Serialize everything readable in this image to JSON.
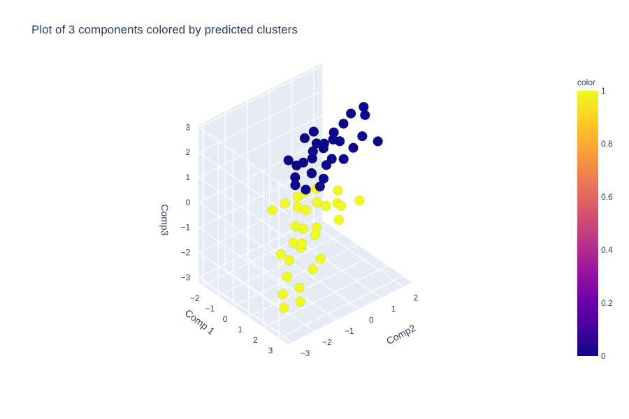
{
  "chart_data": {
    "type": "scatter",
    "subtype": "3d-scatter",
    "title": "Plot of 3 components colored by predicted clusters",
    "axes": {
      "x": {
        "label": "Comp 1",
        "ticks": [
          "−2",
          "−1",
          "0",
          "1",
          "2",
          "3"
        ],
        "range": [
          -2.3,
          3.6
        ]
      },
      "y": {
        "label": "Comp2",
        "ticks": [
          "−3",
          "−2",
          "−1",
          "0",
          "1",
          "2"
        ],
        "range": [
          -3.2,
          2.4
        ]
      },
      "z": {
        "label": "Comp3",
        "ticks": [
          "−3",
          "−2",
          "−1",
          "0",
          "1",
          "2",
          "3"
        ],
        "range": [
          -3.2,
          3.1
        ]
      }
    },
    "colorbar": {
      "title": "color",
      "ticks": [
        "0",
        "0.2",
        "0.4",
        "0.6",
        "0.8",
        "1"
      ],
      "range": [
        0,
        1
      ],
      "colorscale": "plasma"
    },
    "series": [
      {
        "cluster": 0,
        "color": "#0d0887",
        "note_points": [
          [
            -0.5,
            0.3,
            0.8
          ],
          [
            -0.3,
            0.6,
            1.2
          ],
          [
            0,
            0.9,
            1.5
          ],
          [
            0.2,
            1.2,
            1.9
          ],
          [
            0.4,
            1.5,
            2.2
          ],
          [
            -0.8,
            0.2,
            0.6
          ],
          [
            -0.2,
            0.5,
            1.0
          ],
          [
            0.1,
            0.8,
            1.4
          ],
          [
            0.3,
            1.1,
            1.7
          ],
          [
            0.6,
            1.7,
            2.6
          ],
          [
            1.0,
            2.0,
            2.9
          ],
          [
            0.8,
            2.2,
            2.4
          ],
          [
            1.5,
            2.3,
            1.6
          ],
          [
            -0.6,
            0.0,
            0.3
          ],
          [
            -0.1,
            0.4,
            0.5
          ],
          [
            0.2,
            0.2,
            0.7
          ],
          [
            0.5,
            0.9,
            1.1
          ],
          [
            0.7,
            1.3,
            1.0
          ],
          [
            -0.4,
            0.7,
            1.9
          ],
          [
            -0.7,
            0.5,
            1.6
          ],
          [
            -0.9,
            -0.1,
            0.9
          ],
          [
            0.0,
            1.0,
            0.6
          ],
          [
            0.4,
            0.6,
            0.4
          ],
          [
            0.9,
            1.6,
            1.4
          ],
          [
            1.2,
            1.8,
            1.9
          ],
          [
            -0.3,
            -0.2,
            0.2
          ],
          [
            0.1,
            0.0,
            0.1
          ],
          [
            -0.5,
            0.9,
            1.3
          ],
          [
            0.3,
            1.4,
            1.5
          ],
          [
            0.6,
            0.3,
            0.3
          ]
        ]
      },
      {
        "cluster": 1,
        "color": "#f0f921",
        "note_points": [
          [
            0.3,
            -0.5,
            -0.3
          ],
          [
            0.6,
            -0.8,
            -0.8
          ],
          [
            0.9,
            -1.1,
            -1.2
          ],
          [
            1.2,
            -1.5,
            -1.6
          ],
          [
            1.5,
            -1.8,
            -2.0
          ],
          [
            0.0,
            -0.3,
            -0.1
          ],
          [
            0.4,
            -0.2,
            -0.5
          ],
          [
            0.8,
            -0.6,
            -0.9
          ],
          [
            1.1,
            -0.9,
            -1.4
          ],
          [
            1.8,
            -2.2,
            -2.4
          ],
          [
            2.3,
            -2.5,
            -2.6
          ],
          [
            2.6,
            -2.0,
            -1.9
          ],
          [
            3.1,
            -2.3,
            -2.1
          ],
          [
            2.9,
            -1.6,
            -1.2
          ],
          [
            1.6,
            -1.2,
            -0.9
          ],
          [
            1.9,
            -0.8,
            -0.6
          ],
          [
            0.7,
            0.1,
            -0.2
          ],
          [
            0.2,
            0.4,
            0.0
          ],
          [
            1.0,
            0.3,
            -0.3
          ],
          [
            1.4,
            -0.4,
            -0.7
          ],
          [
            -0.4,
            -0.6,
            -0.4
          ],
          [
            -0.8,
            -0.9,
            -0.7
          ],
          [
            0.5,
            -1.4,
            -1.7
          ],
          [
            1.3,
            0.6,
            -0.2
          ],
          [
            2.0,
            0.2,
            -0.4
          ],
          [
            2.4,
            -0.9,
            -1.3
          ],
          [
            -0.2,
            0.2,
            -0.2
          ],
          [
            0.9,
            0.9,
            0.0
          ],
          [
            1.7,
            0.5,
            -0.1
          ],
          [
            2.2,
            1.0,
            0.1
          ]
        ]
      }
    ]
  }
}
